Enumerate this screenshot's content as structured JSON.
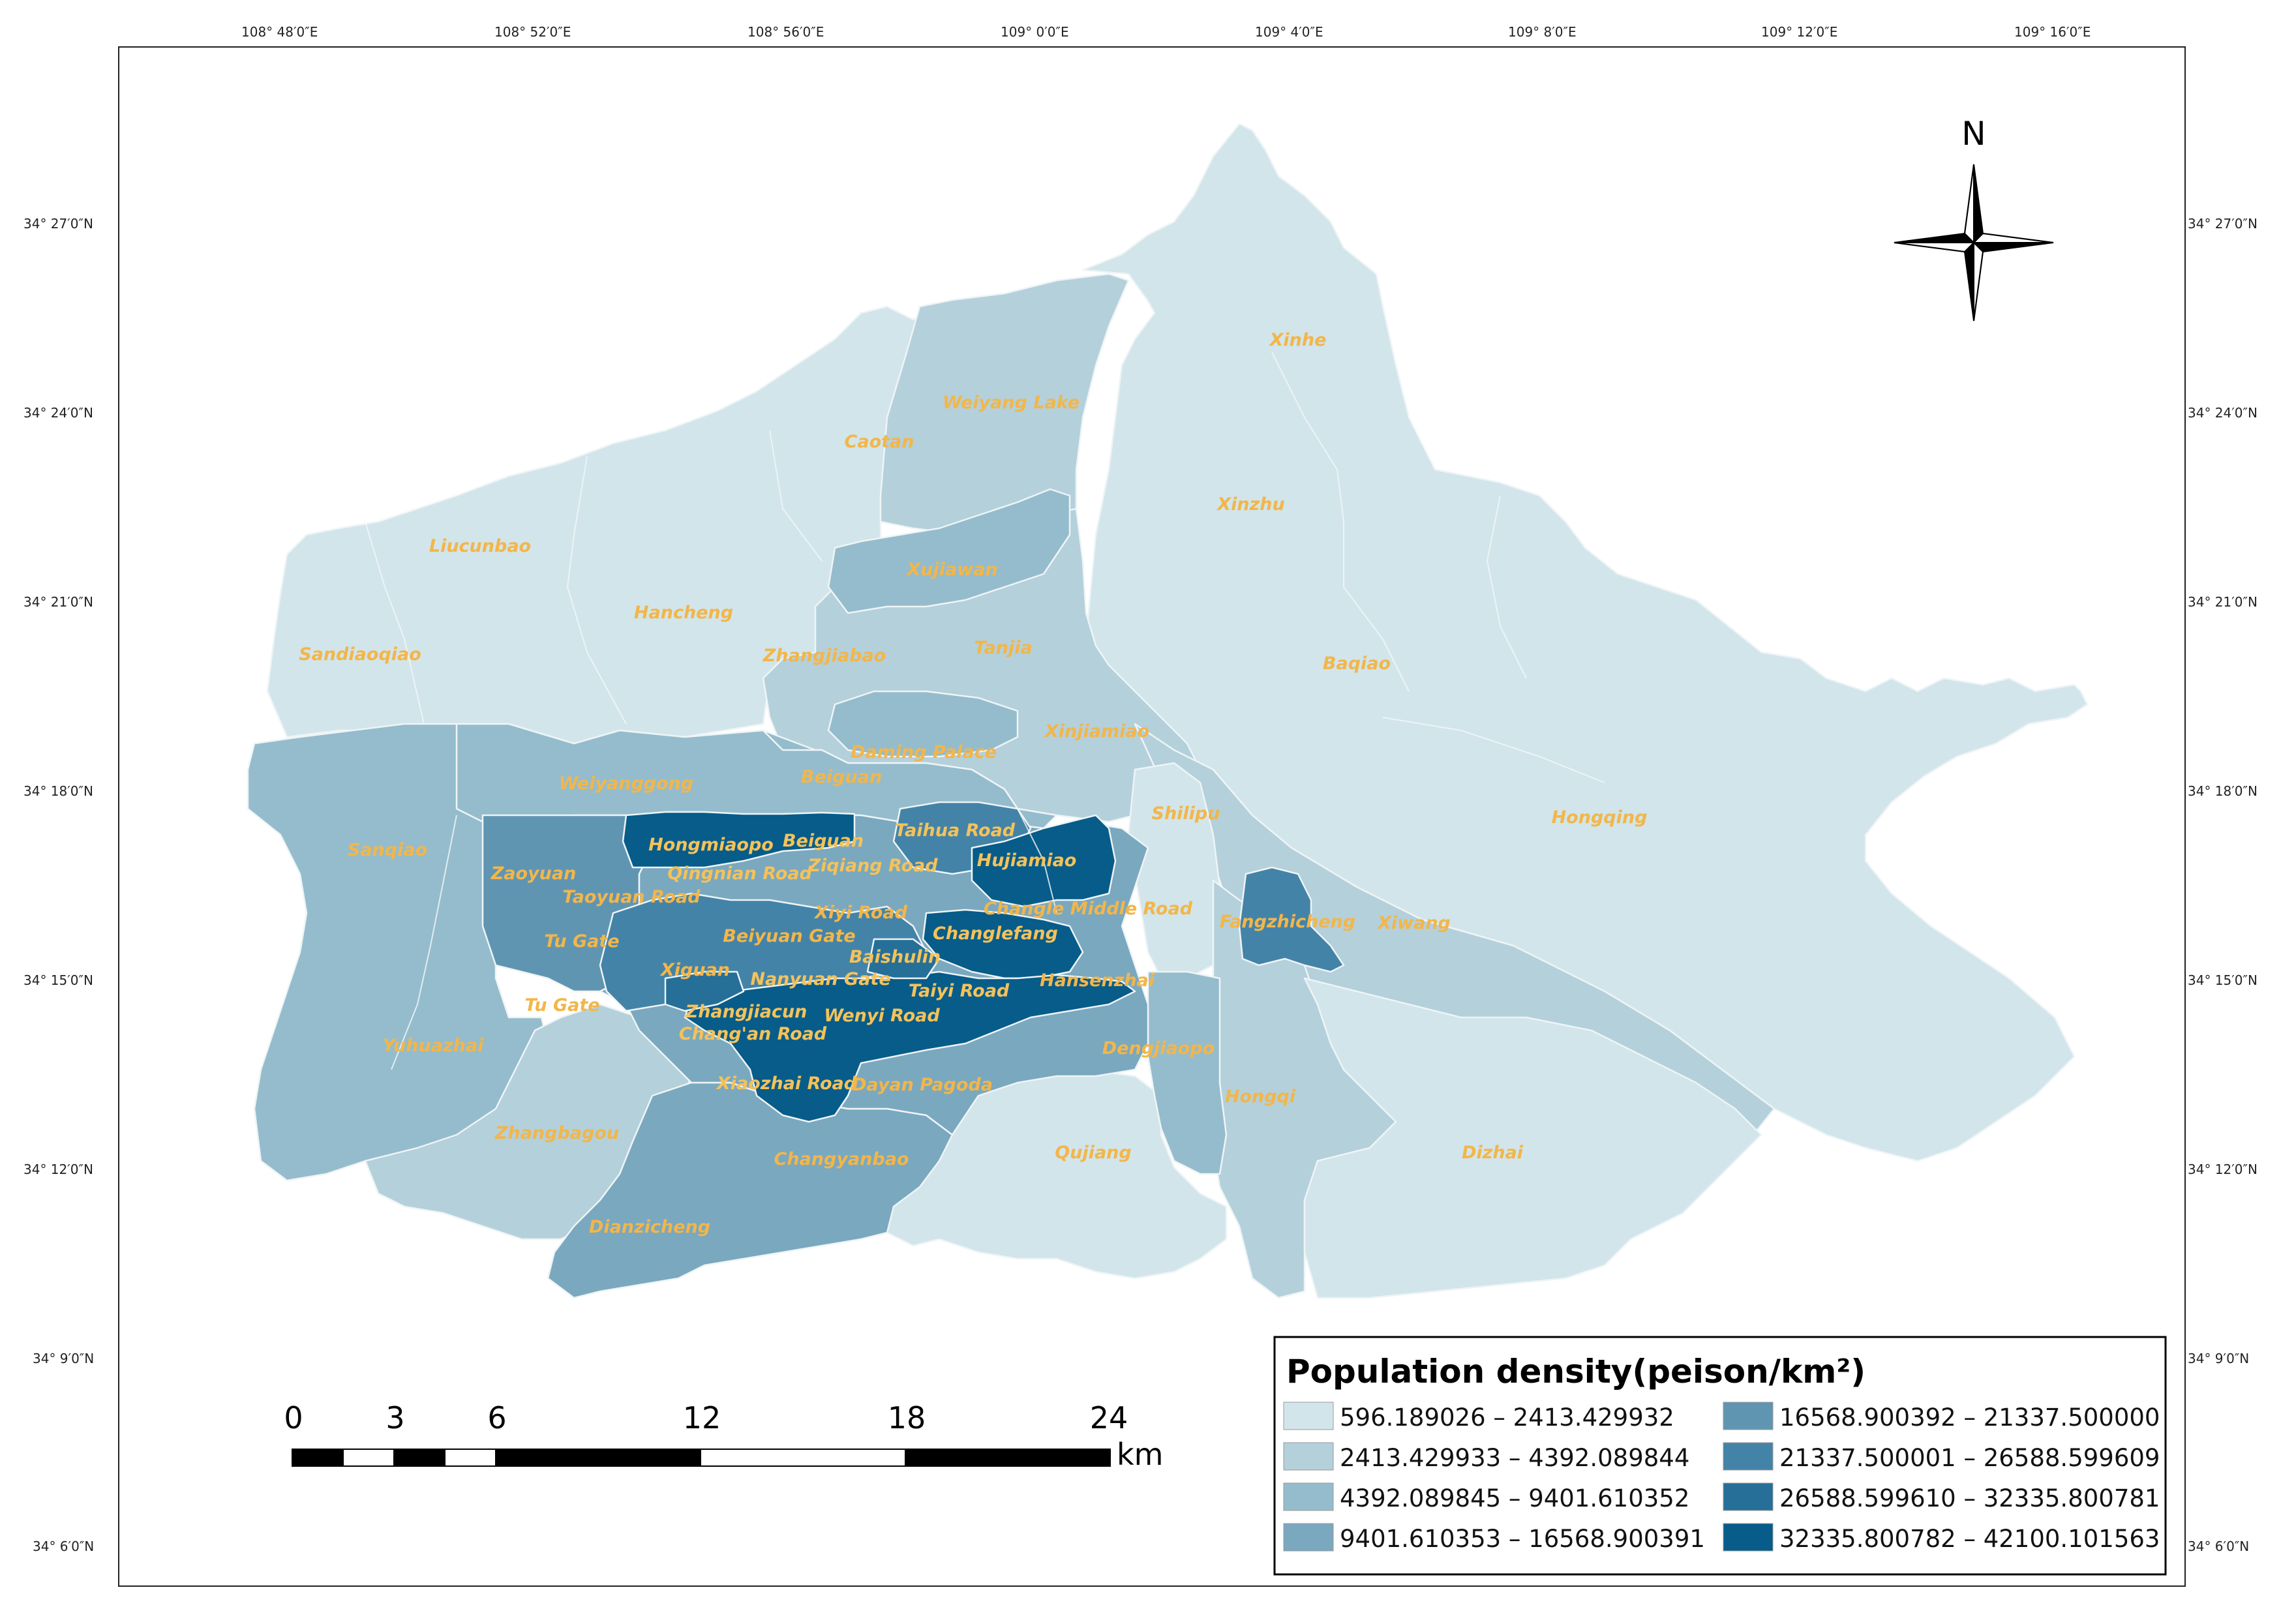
{
  "map": {
    "lon_ticks": [
      "108° 48′0″E",
      "108° 52′0″E",
      "108° 56′0″E",
      "109° 0′0″E",
      "109° 4′0″E",
      "109° 8′0″E",
      "109° 12′0″E",
      "109° 16′0″E"
    ],
    "lat_ticks": [
      "34° 27′0″N",
      "34° 24′0″N",
      "34° 21′0″N",
      "34° 18′0″N",
      "34° 15′0″N",
      "34° 12′0″N",
      "34° 9′0″N",
      "34° 6′0″N"
    ],
    "north_label": "N",
    "places": {
      "xinhe": "Xinhe",
      "weiyang_lake": "Weiyang Lake",
      "caotan": "Caotan",
      "xinzhu": "Xinzhu",
      "liucunbao": "Liucunbao",
      "xujiawan": "Xujiawan",
      "hancheng": "Hancheng",
      "zhangjiabao": "Zhangjiabao",
      "tanjia": "Tanjia",
      "baqiao": "Baqiao",
      "sandiaoqiao": "Sandiaoqiao",
      "xinjiamiao": "Xinjiamiao",
      "daming_palace": "Daming Palace",
      "beiguan_n": "Beiguan",
      "weiyanggong": "Weiyanggong",
      "shiliipu": "Shilipu",
      "hongqing": "Hongqing",
      "sanqiao": "Sanqiao",
      "hongmiaopo": "Hongmiaopo",
      "beiguan": "Beiguan",
      "taihua_road": "Taihua Road",
      "zaoyuan": "Zaoyuan",
      "qingnian_road": "Qingnian Road",
      "ziqiang_road": "Ziqiang Road",
      "hujiamiao": "Hujiamiao",
      "taoyuan_road": "Taoyuan Road",
      "xiyi_road": "Xiyi Road",
      "changle_middle_road": "Changle Middle Road",
      "fangzhicheng": "Fangzhicheng",
      "xiwang": "Xiwang",
      "tu_gate": "Tu Gate",
      "beiyuan_gate": "Beiyuan Gate",
      "changlefang": "Changlefang",
      "baishulin": "Baishulin",
      "xiguan": "Xiguan",
      "nanyuan_gate": "Nanyuan Gate",
      "hansenzhai": "Hansenzhai",
      "tu_gate_2": "Tu Gate",
      "taiyi_road": "Taiyi Road",
      "zhangjiacun": "Zhangjiacun",
      "wenyi_road": "Wenyi Road",
      "changan_road": "Chang'an Road",
      "yuhuazhai": "Yuhuazhai",
      "dengjiaopo": "Dengjiaopo",
      "xiaozhai_road": "Xiaozhai Road",
      "dayan_pagoda": "Dayan Pagoda",
      "hongqi": "Hongqi",
      "zhangbagou": "Zhangbagou",
      "qujiang": "Qujiang",
      "dizhai": "Dizhai",
      "changyanbao": "Changyanbao",
      "dianzicheng": "Dianzicheng"
    }
  },
  "legend": {
    "title": "Population density(peison/km²)",
    "classes": [
      {
        "label": "596.189026 – 2413.429932",
        "color": "#d2e5ea"
      },
      {
        "label": "2413.429933 – 4392.089844",
        "color": "#b4d0db"
      },
      {
        "label": "4392.089845 – 9401.610352",
        "color": "#95bccc"
      },
      {
        "label": "9401.610353 – 16568.900391",
        "color": "#7aa8bf"
      },
      {
        "label": "16568.900392 – 21337.500000",
        "color": "#6095b2"
      },
      {
        "label": "21337.500001 – 26588.599609",
        "color": "#4483a8"
      },
      {
        "label": "26588.599610 – 32335.800781",
        "color": "#256f98"
      },
      {
        "label": "32335.800782 – 42100.101563",
        "color": "#075c89"
      }
    ]
  },
  "scale_bar": {
    "ticks": [
      "0",
      "3",
      "6",
      "12",
      "18",
      "24"
    ],
    "unit": "km"
  }
}
